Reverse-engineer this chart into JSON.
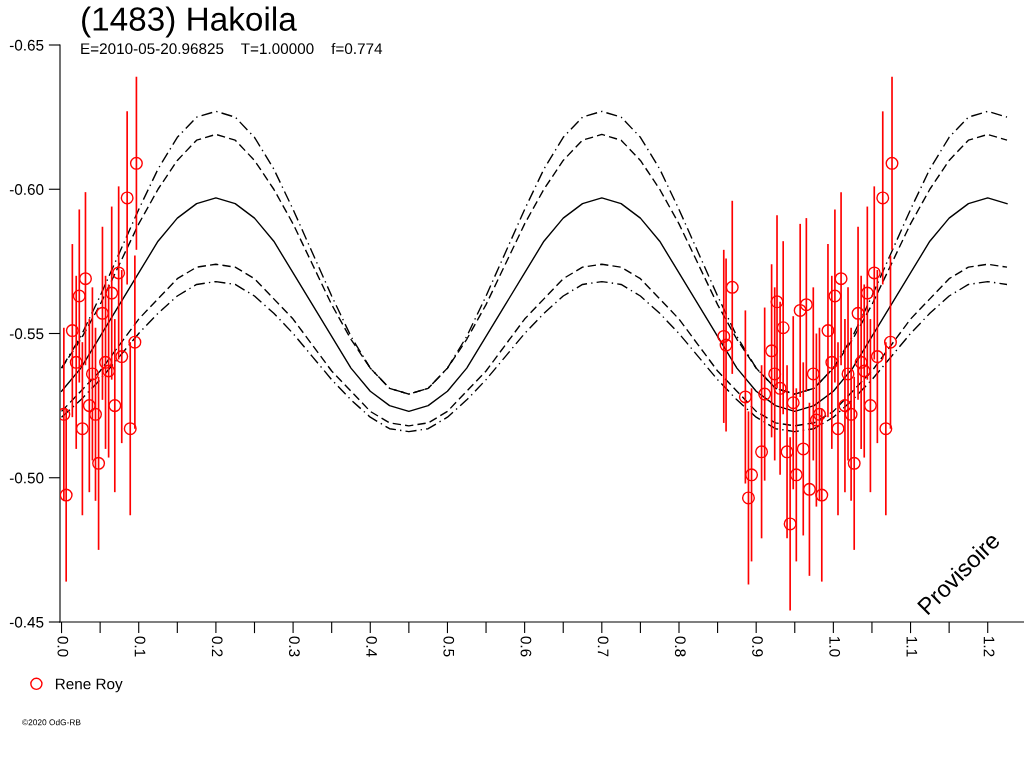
{
  "chart_data": {
    "type": "scatter",
    "title": "(1483) Hakoila",
    "subtitle": "E=2010-05-20.96825    T=1.00000    f=0.774",
    "annotations": [
      "Provisoire",
      "©2020 OdG-RB"
    ],
    "xlim": [
      -0.002,
      1.247
    ],
    "ylim": [
      -0.45,
      -0.65
    ],
    "xticks": [
      {
        "value": 0.0,
        "label": "0.0"
      },
      {
        "value": 0.05,
        "label": null
      },
      {
        "value": 0.1,
        "label": "0.1"
      },
      {
        "value": 0.15,
        "label": null
      },
      {
        "value": 0.2,
        "label": "0.2"
      },
      {
        "value": 0.25,
        "label": null
      },
      {
        "value": 0.3,
        "label": "0.3"
      },
      {
        "value": 0.35,
        "label": null
      },
      {
        "value": 0.4,
        "label": "0.4"
      },
      {
        "value": 0.45,
        "label": null
      },
      {
        "value": 0.5,
        "label": "0.5"
      },
      {
        "value": 0.55,
        "label": null
      },
      {
        "value": 0.6,
        "label": "0.6"
      },
      {
        "value": 0.65,
        "label": null
      },
      {
        "value": 0.7,
        "label": "0.7"
      },
      {
        "value": 0.75,
        "label": null
      },
      {
        "value": 0.8,
        "label": "0.8"
      },
      {
        "value": 0.85,
        "label": null
      },
      {
        "value": 0.9,
        "label": "0.9"
      },
      {
        "value": 0.95,
        "label": null
      },
      {
        "value": 1.0,
        "label": "1.0"
      },
      {
        "value": 1.05,
        "label": null
      },
      {
        "value": 1.1,
        "label": "1.1"
      },
      {
        "value": 1.15,
        "label": null
      },
      {
        "value": 1.2,
        "label": "1.2"
      }
    ],
    "yticks": [
      {
        "value": -0.65,
        "label": "-0.65"
      },
      {
        "value": -0.6,
        "label": "-0.60"
      },
      {
        "value": -0.55,
        "label": "-0.55"
      },
      {
        "value": -0.5,
        "label": "-0.50"
      },
      {
        "value": -0.45,
        "label": "-0.45"
      }
    ],
    "grid": false,
    "legend": "bottom left",
    "series": [
      {
        "type": "line",
        "color": "#000000",
        "line_style": "solid",
        "marker": "none",
        "x": [
          0,
          0.025,
          0.05,
          0.075,
          0.1,
          0.125,
          0.15,
          0.175,
          0.2,
          0.225,
          0.25,
          0.275,
          0.3,
          0.325,
          0.35,
          0.375,
          0.4,
          0.425,
          0.45,
          0.475,
          0.5,
          0.525,
          0.55,
          0.575,
          0.6,
          0.625,
          0.65,
          0.675,
          0.7,
          0.725,
          0.75,
          0.775,
          0.8,
          0.825,
          0.85,
          0.875,
          0.9,
          0.925,
          0.95,
          0.975,
          1.0,
          1.025,
          1.05,
          1.075,
          1.1,
          1.125,
          1.15,
          1.175,
          1.2,
          1.225
        ],
        "values": [
          -0.53,
          -0.538,
          -0.549,
          -0.56,
          -0.571,
          -0.582,
          -0.59,
          -0.595,
          -0.597,
          -0.595,
          -0.59,
          -0.582,
          -0.571,
          -0.56,
          -0.549,
          -0.538,
          -0.53,
          -0.525,
          -0.523,
          -0.525,
          -0.53,
          -0.538,
          -0.549,
          -0.56,
          -0.571,
          -0.582,
          -0.59,
          -0.595,
          -0.597,
          -0.595,
          -0.59,
          -0.582,
          -0.571,
          -0.56,
          -0.549,
          -0.538,
          -0.53,
          -0.525,
          -0.523,
          -0.525,
          -0.53,
          -0.538,
          -0.549,
          -0.56,
          -0.571,
          -0.582,
          -0.59,
          -0.595,
          -0.597,
          -0.595
        ]
      },
      {
        "type": "line",
        "color": "#000000",
        "line_style": "dashdot",
        "marker": "none",
        "x": [
          0,
          0.025,
          0.05,
          0.075,
          0.1,
          0.125,
          0.15,
          0.175,
          0.2,
          0.225,
          0.25,
          0.275,
          0.3,
          0.325,
          0.35,
          0.375,
          0.4,
          0.425,
          0.45,
          0.475,
          0.5,
          0.525,
          0.55,
          0.575,
          0.6,
          0.625,
          0.65,
          0.675,
          0.7,
          0.725,
          0.75,
          0.775,
          0.8,
          0.825,
          0.85,
          0.875,
          0.9,
          0.925,
          0.95,
          0.975,
          1.0,
          1.025,
          1.05,
          1.075,
          1.1,
          1.125,
          1.15,
          1.175,
          1.2,
          1.225
        ],
        "values": [
          -0.538,
          -0.549,
          -0.563,
          -0.578,
          -0.593,
          -0.607,
          -0.618,
          -0.625,
          -0.627,
          -0.625,
          -0.618,
          -0.607,
          -0.593,
          -0.578,
          -0.563,
          -0.549,
          -0.538,
          -0.531,
          -0.529,
          -0.531,
          -0.538,
          -0.549,
          -0.563,
          -0.578,
          -0.593,
          -0.607,
          -0.618,
          -0.625,
          -0.627,
          -0.625,
          -0.618,
          -0.607,
          -0.593,
          -0.578,
          -0.563,
          -0.549,
          -0.538,
          -0.531,
          -0.529,
          -0.531,
          -0.538,
          -0.549,
          -0.563,
          -0.578,
          -0.593,
          -0.607,
          -0.618,
          -0.625,
          -0.627,
          -0.625
        ]
      },
      {
        "type": "line",
        "color": "#000000",
        "line_style": "dashed",
        "marker": "none",
        "x": [
          0,
          0.025,
          0.05,
          0.075,
          0.1,
          0.125,
          0.15,
          0.175,
          0.2,
          0.225,
          0.25,
          0.275,
          0.3,
          0.325,
          0.35,
          0.375,
          0.4,
          0.425,
          0.45,
          0.475,
          0.5,
          0.525,
          0.55,
          0.575,
          0.6,
          0.625,
          0.65,
          0.675,
          0.7,
          0.725,
          0.75,
          0.775,
          0.8,
          0.825,
          0.85,
          0.875,
          0.9,
          0.925,
          0.95,
          0.975,
          1.0,
          1.025,
          1.05,
          1.075,
          1.1,
          1.125,
          1.15,
          1.175,
          1.2,
          1.225
        ],
        "values": [
          -0.538,
          -0.548,
          -0.56,
          -0.574,
          -0.588,
          -0.6,
          -0.61,
          -0.617,
          -0.619,
          -0.617,
          -0.61,
          -0.6,
          -0.588,
          -0.574,
          -0.56,
          -0.548,
          -0.538,
          -0.531,
          -0.529,
          -0.531,
          -0.538,
          -0.548,
          -0.56,
          -0.574,
          -0.588,
          -0.6,
          -0.61,
          -0.617,
          -0.619,
          -0.617,
          -0.61,
          -0.6,
          -0.588,
          -0.574,
          -0.56,
          -0.548,
          -0.538,
          -0.531,
          -0.529,
          -0.531,
          -0.538,
          -0.548,
          -0.56,
          -0.574,
          -0.588,
          -0.6,
          -0.61,
          -0.617,
          -0.619,
          -0.617
        ]
      },
      {
        "type": "line",
        "color": "#000000",
        "line_style": "dashed",
        "marker": "none",
        "x": [
          0,
          0.025,
          0.05,
          0.075,
          0.1,
          0.125,
          0.15,
          0.175,
          0.2,
          0.225,
          0.25,
          0.275,
          0.3,
          0.325,
          0.35,
          0.375,
          0.4,
          0.425,
          0.45,
          0.475,
          0.5,
          0.525,
          0.55,
          0.575,
          0.6,
          0.625,
          0.65,
          0.675,
          0.7,
          0.725,
          0.75,
          0.775,
          0.8,
          0.825,
          0.85,
          0.875,
          0.9,
          0.925,
          0.95,
          0.975,
          1.0,
          1.025,
          1.05,
          1.075,
          1.1,
          1.125,
          1.15,
          1.175,
          1.2,
          1.225
        ],
        "values": [
          -0.523,
          -0.53,
          -0.537,
          -0.546,
          -0.555,
          -0.562,
          -0.569,
          -0.573,
          -0.574,
          -0.573,
          -0.569,
          -0.562,
          -0.555,
          -0.546,
          -0.537,
          -0.53,
          -0.523,
          -0.519,
          -0.518,
          -0.519,
          -0.523,
          -0.53,
          -0.537,
          -0.546,
          -0.555,
          -0.562,
          -0.569,
          -0.573,
          -0.574,
          -0.573,
          -0.569,
          -0.562,
          -0.555,
          -0.546,
          -0.537,
          -0.53,
          -0.523,
          -0.519,
          -0.518,
          -0.519,
          -0.523,
          -0.53,
          -0.537,
          -0.546,
          -0.555,
          -0.562,
          -0.569,
          -0.573,
          -0.574,
          -0.573
        ]
      },
      {
        "type": "line",
        "color": "#000000",
        "line_style": "dashdot",
        "marker": "none",
        "x": [
          0,
          0.025,
          0.05,
          0.075,
          0.1,
          0.125,
          0.15,
          0.175,
          0.2,
          0.225,
          0.25,
          0.275,
          0.3,
          0.325,
          0.35,
          0.375,
          0.4,
          0.425,
          0.45,
          0.475,
          0.5,
          0.525,
          0.55,
          0.575,
          0.6,
          0.625,
          0.65,
          0.675,
          0.7,
          0.725,
          0.75,
          0.775,
          0.8,
          0.825,
          0.85,
          0.875,
          0.9,
          0.925,
          0.95,
          0.975,
          1.0,
          1.025,
          1.05,
          1.075,
          1.1,
          1.125,
          1.15,
          1.175,
          1.2,
          1.225
        ],
        "values": [
          -0.521,
          -0.527,
          -0.534,
          -0.542,
          -0.55,
          -0.557,
          -0.563,
          -0.567,
          -0.568,
          -0.567,
          -0.563,
          -0.557,
          -0.55,
          -0.542,
          -0.534,
          -0.527,
          -0.521,
          -0.517,
          -0.516,
          -0.517,
          -0.521,
          -0.527,
          -0.534,
          -0.542,
          -0.55,
          -0.557,
          -0.563,
          -0.567,
          -0.568,
          -0.567,
          -0.563,
          -0.557,
          -0.55,
          -0.542,
          -0.534,
          -0.527,
          -0.521,
          -0.517,
          -0.516,
          -0.517,
          -0.521,
          -0.527,
          -0.534,
          -0.542,
          -0.55,
          -0.557,
          -0.563,
          -0.567,
          -0.568,
          -0.567
        ]
      },
      {
        "name": "Rene Roy",
        "color": "#ff0000",
        "marker": "circle",
        "x": [
          0.003,
          0.006,
          0.014,
          0.019,
          0.023,
          0.027,
          0.031,
          0.036,
          0.04,
          0.044,
          0.048,
          0.053,
          0.057,
          0.061,
          0.065,
          0.069,
          0.074,
          0.078,
          0.085,
          0.089,
          0.095,
          0.097,
          0.858,
          0.861,
          0.869,
          0.886,
          0.89,
          0.894,
          0.907,
          0.911,
          0.92,
          0.924,
          0.927,
          0.931,
          0.935,
          0.94,
          0.944,
          0.948,
          0.952,
          0.957,
          0.961,
          0.965,
          0.969,
          0.974,
          0.978,
          0.982,
          0.985,
          0.993,
          0.998,
          1.002,
          1.006,
          1.01,
          1.015,
          1.019,
          1.023,
          1.027,
          1.032,
          1.036,
          1.04,
          1.044,
          1.048,
          1.053,
          1.057,
          1.064,
          1.068,
          1.074,
          1.076
        ],
        "values": [
          -0.522,
          -0.494,
          -0.551,
          -0.54,
          -0.563,
          -0.517,
          -0.569,
          -0.525,
          -0.536,
          -0.522,
          -0.505,
          -0.557,
          -0.54,
          -0.537,
          -0.564,
          -0.525,
          -0.571,
          -0.542,
          -0.597,
          -0.517,
          -0.547,
          -0.609,
          -0.549,
          -0.546,
          -0.566,
          -0.528,
          -0.493,
          -0.501,
          -0.509,
          -0.529,
          -0.544,
          -0.536,
          -0.561,
          -0.531,
          -0.552,
          -0.509,
          -0.484,
          -0.526,
          -0.501,
          -0.558,
          -0.51,
          -0.56,
          -0.496,
          -0.536,
          -0.52,
          -0.522,
          -0.494,
          -0.551,
          -0.54,
          -0.563,
          -0.517,
          -0.569,
          -0.525,
          -0.536,
          -0.522,
          -0.505,
          -0.557,
          -0.54,
          -0.537,
          -0.564,
          -0.525,
          -0.571,
          -0.542,
          -0.597,
          -0.517,
          -0.547,
          -0.609
        ],
        "errors": [
          0.03,
          0.03,
          0.03,
          0.03,
          0.03,
          0.03,
          0.03,
          0.03,
          0.03,
          0.03,
          0.03,
          0.03,
          0.03,
          0.03,
          0.03,
          0.03,
          0.03,
          0.03,
          0.03,
          0.03,
          0.03,
          0.03,
          0.03,
          0.03,
          0.03,
          0.03,
          0.03,
          0.03,
          0.03,
          0.03,
          0.03,
          0.03,
          0.03,
          0.03,
          0.03,
          0.03,
          0.03,
          0.03,
          0.03,
          0.03,
          0.03,
          0.03,
          0.03,
          0.03,
          0.03,
          0.03,
          0.03,
          0.03,
          0.03,
          0.03,
          0.03,
          0.03,
          0.03,
          0.03,
          0.03,
          0.03,
          0.03,
          0.03,
          0.03,
          0.03,
          0.03,
          0.03,
          0.03,
          0.03,
          0.03,
          0.03,
          0.03
        ]
      }
    ]
  }
}
